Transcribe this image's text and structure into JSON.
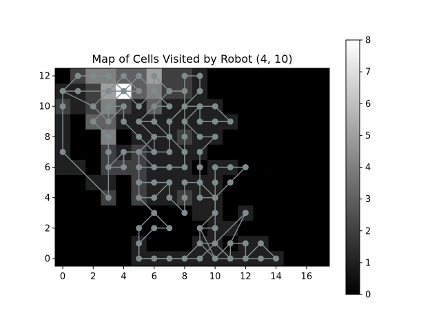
{
  "chart_data": {
    "type": "heatmap",
    "title": "Map of Cells Visited by Robot (4, 10)",
    "xlabel": "",
    "ylabel": "",
    "xlim": [
      -0.5,
      17.5
    ],
    "ylim": [
      -0.5,
      12.5
    ],
    "x_ticks": [
      0,
      2,
      4,
      6,
      8,
      10,
      12,
      14,
      16
    ],
    "y_ticks": [
      0,
      2,
      4,
      6,
      8,
      10,
      12
    ],
    "colorbar": {
      "min": 0,
      "max": 8,
      "ticks": [
        0,
        1,
        2,
        3,
        4,
        5,
        6,
        7,
        8
      ],
      "colormap": "gray"
    },
    "grid": [
      [
        0,
        0,
        0,
        0,
        0,
        1,
        1,
        1,
        1,
        1,
        1,
        1,
        1,
        1,
        1,
        0,
        0,
        0
      ],
      [
        0,
        0,
        0,
        0,
        0,
        1,
        0,
        0,
        0,
        1,
        1,
        0,
        1,
        1,
        0,
        0,
        0,
        0
      ],
      [
        0,
        0,
        0,
        0,
        0,
        0,
        0,
        0,
        0,
        0,
        1,
        1,
        0,
        0,
        0,
        0,
        0,
        0
      ],
      [
        0,
        0,
        0,
        0,
        0,
        0,
        0,
        0,
        0,
        1,
        1,
        0,
        1,
        0,
        0,
        0,
        0,
        0
      ],
      [
        0,
        0,
        0,
        2,
        0,
        2,
        1,
        1,
        2,
        1,
        1,
        0,
        0,
        0,
        0,
        0,
        0,
        0
      ],
      [
        0,
        0,
        1,
        1,
        0,
        2,
        1,
        1,
        1,
        1,
        1,
        0,
        0,
        0,
        0,
        0,
        0,
        0
      ],
      [
        1,
        1,
        0,
        2,
        2,
        2,
        1,
        1,
        1,
        0,
        1,
        1,
        0,
        0,
        0,
        0,
        0,
        0
      ],
      [
        1,
        0,
        0,
        2,
        1,
        2,
        1,
        1,
        1,
        1,
        0,
        0,
        0,
        0,
        0,
        0,
        0,
        0
      ],
      [
        1,
        0,
        0,
        4,
        0,
        1,
        1,
        1,
        2,
        1,
        1,
        0,
        0,
        0,
        0,
        0,
        0,
        0
      ],
      [
        1,
        0,
        3,
        3,
        1,
        1,
        1,
        1,
        1,
        1,
        1,
        1,
        0,
        0,
        0,
        0,
        0,
        0
      ],
      [
        2,
        1,
        2,
        4,
        2,
        1,
        3,
        1,
        1,
        1,
        1,
        0,
        0,
        0,
        0,
        0,
        0,
        0
      ],
      [
        1,
        1,
        2,
        5,
        8,
        3,
        4,
        2,
        2,
        1,
        0,
        0,
        0,
        0,
        0,
        0,
        0,
        0
      ],
      [
        0,
        2,
        4,
        4,
        3,
        3,
        5,
        2,
        2,
        1,
        0,
        0,
        0,
        0,
        0,
        0,
        0,
        0
      ]
    ],
    "path": [
      [
        4,
        10
      ],
      [
        3,
        9
      ],
      [
        2,
        10
      ],
      [
        3,
        11
      ],
      [
        4,
        11
      ],
      [
        5,
        12
      ],
      [
        6,
        11
      ],
      [
        5,
        10
      ],
      [
        4,
        11
      ],
      [
        3,
        12
      ],
      [
        2,
        12
      ],
      [
        1,
        12
      ],
      [
        0,
        11
      ],
      [
        1,
        11
      ],
      [
        3,
        11
      ],
      [
        4,
        12
      ],
      [
        5,
        11
      ],
      [
        4,
        11
      ],
      [
        3,
        10
      ],
      [
        2,
        9
      ],
      [
        3,
        8
      ],
      [
        3,
        7
      ],
      [
        3,
        6
      ],
      [
        4,
        6
      ],
      [
        4,
        7
      ],
      [
        5,
        7
      ],
      [
        6,
        6
      ],
      [
        7,
        6
      ],
      [
        8,
        6
      ],
      [
        8,
        7
      ],
      [
        7,
        8
      ],
      [
        6,
        9
      ],
      [
        5,
        9
      ],
      [
        6,
        10
      ],
      [
        7,
        10
      ],
      [
        6,
        11
      ],
      [
        6,
        12
      ],
      [
        7,
        11
      ],
      [
        8,
        11
      ],
      [
        8,
        12
      ],
      [
        9,
        12
      ],
      [
        9,
        11
      ],
      [
        8,
        10
      ],
      [
        7,
        9
      ],
      [
        7,
        8
      ],
      [
        7,
        7
      ],
      [
        6,
        7
      ],
      [
        5,
        8
      ],
      [
        4,
        9
      ],
      [
        4,
        10
      ],
      [
        3,
        10
      ],
      [
        3,
        9
      ],
      [
        2,
        10
      ],
      [
        0,
        11
      ],
      [
        0,
        10
      ],
      [
        0,
        7
      ],
      [
        3,
        4
      ],
      [
        3,
        6
      ],
      [
        4,
        7
      ],
      [
        5,
        7
      ],
      [
        5,
        6
      ],
      [
        5,
        5
      ],
      [
        6,
        5
      ],
      [
        7,
        5
      ],
      [
        6,
        4
      ],
      [
        5,
        4
      ],
      [
        6,
        3
      ],
      [
        7,
        2
      ],
      [
        6,
        2
      ],
      [
        5,
        1
      ],
      [
        5,
        0
      ],
      [
        6,
        0
      ],
      [
        7,
        0
      ],
      [
        8,
        0
      ],
      [
        9,
        1
      ],
      [
        9,
        2
      ],
      [
        10,
        2
      ],
      [
        10,
        1
      ],
      [
        10,
        4
      ],
      [
        10,
        5
      ],
      [
        10,
        6
      ],
      [
        11,
        6
      ],
      [
        12,
        6
      ],
      [
        11,
        5
      ],
      [
        10,
        4
      ],
      [
        9,
        4
      ],
      [
        9,
        5
      ],
      [
        8,
        5
      ],
      [
        8,
        4
      ],
      [
        8,
        3
      ],
      [
        7,
        4
      ],
      [
        7,
        5
      ],
      [
        6,
        5
      ],
      [
        5,
        5
      ],
      [
        5,
        4
      ],
      [
        6,
        3
      ],
      [
        5,
        2
      ],
      [
        5,
        0
      ],
      [
        6,
        0
      ],
      [
        7,
        0
      ],
      [
        8,
        0
      ],
      [
        9,
        0
      ],
      [
        10,
        1
      ],
      [
        11,
        0
      ],
      [
        11,
        1
      ],
      [
        12,
        1
      ],
      [
        12,
        0
      ],
      [
        13,
        1
      ],
      [
        14,
        0
      ],
      [
        13,
        0
      ],
      [
        12,
        0
      ],
      [
        11,
        0
      ],
      [
        10,
        0
      ],
      [
        9,
        1
      ],
      [
        10,
        1
      ],
      [
        12,
        3
      ],
      [
        11,
        1
      ],
      [
        10,
        0
      ],
      [
        9,
        2
      ],
      [
        10,
        3
      ],
      [
        10,
        4
      ],
      [
        9,
        5
      ],
      [
        9,
        6
      ],
      [
        9,
        7
      ],
      [
        10,
        8
      ],
      [
        9,
        8
      ],
      [
        8,
        9
      ],
      [
        9,
        10
      ],
      [
        9,
        9
      ],
      [
        10,
        9
      ],
      [
        11,
        9
      ],
      [
        10,
        10
      ],
      [
        9,
        10
      ],
      [
        8,
        10
      ],
      [
        8,
        9
      ],
      [
        8,
        8
      ],
      [
        8,
        7
      ],
      [
        8,
        6
      ],
      [
        7,
        6
      ],
      [
        6,
        6
      ],
      [
        5,
        6
      ],
      [
        5,
        7
      ],
      [
        6,
        8
      ],
      [
        7,
        8
      ],
      [
        7,
        9
      ],
      [
        8,
        10
      ],
      [
        8,
        11
      ],
      [
        7,
        11
      ],
      [
        6,
        10
      ],
      [
        6,
        9
      ],
      [
        5,
        9
      ],
      [
        6,
        8
      ],
      [
        6,
        7
      ],
      [
        5,
        7
      ],
      [
        4,
        7
      ],
      [
        4,
        6
      ]
    ]
  }
}
